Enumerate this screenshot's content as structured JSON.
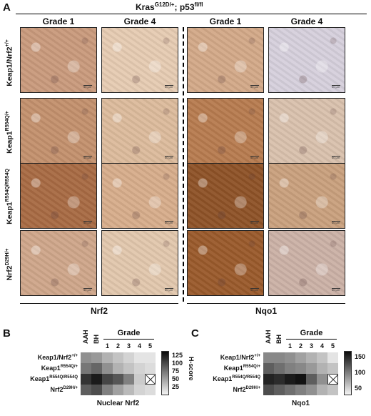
{
  "panel_a": {
    "letter": "A",
    "title_base": "Kras",
    "title_sup1": "G12D/+",
    "title_mid": "; p53",
    "title_sup2": "fl/fl",
    "column_headers": [
      "Grade 1",
      "Grade 4",
      "Grade 1",
      "Grade 4"
    ],
    "rows": [
      {
        "base": "Keap1/Nrf2",
        "sup": "+/+"
      },
      {
        "base": "Keap1",
        "sup": "R554Q/+"
      },
      {
        "base": "Keap1",
        "sup": "R554Q/R554Q"
      },
      {
        "base": "Nrf2",
        "sup": "D29H/+"
      }
    ],
    "scale_text": "50 μm",
    "footer_left": "Nrf2",
    "footer_right": "Nqo1",
    "tile_colors": [
      [
        "#c99a7c",
        "#e6cbb2",
        "#d3a988",
        "#d6d0dc"
      ],
      [
        "#c3906d",
        "#dcbb9c",
        "#b77b4f",
        "#d9c1ad"
      ],
      [
        "#a86a43",
        "#d7ad8b",
        "#8e5227",
        "#c9a07d"
      ],
      [
        "#cfa68a",
        "#e2c7ad",
        "#9a5a2b",
        "#cbb1a6"
      ]
    ]
  },
  "panel_b": {
    "letter": "B",
    "grade_label": "Grade",
    "column_headers": [
      "AAH",
      "BH",
      "1",
      "2",
      "3",
      "4",
      "5"
    ],
    "rows": [
      {
        "base": "Keap1/Nrf2",
        "sup": "+/+"
      },
      {
        "base": "Keap1",
        "sup": "R554Q/+"
      },
      {
        "base": "Keap1",
        "sup": "R554Q/R554Q"
      },
      {
        "base": "Nrf2",
        "sup": "D29H/+"
      }
    ],
    "values": [
      [
        60,
        55,
        40,
        30,
        20,
        10,
        10
      ],
      [
        75,
        85,
        60,
        40,
        30,
        20,
        15
      ],
      [
        115,
        130,
        105,
        95,
        70,
        25,
        null
      ],
      [
        90,
        100,
        70,
        50,
        35,
        20,
        15
      ]
    ],
    "colorbar_min": 0,
    "colorbar_max": 140,
    "colorbar_ticks": [
      "125",
      "100",
      "75",
      "50",
      "25"
    ],
    "colorbar_label": "H-score",
    "xlabel": "Nuclear Nrf2"
  },
  "panel_c": {
    "letter": "C",
    "grade_label": "Grade",
    "column_headers": [
      "AAH",
      "BH",
      "1",
      "2",
      "3",
      "4",
      "5"
    ],
    "rows": [
      {
        "base": "Keap1/Nrf2",
        "sup": "+/+"
      },
      {
        "base": "Keap1",
        "sup": "R554Q/+"
      },
      {
        "base": "Keap1",
        "sup": "R554Q/R554Q"
      },
      {
        "base": "Nrf2",
        "sup": "D29H/+"
      }
    ],
    "values": [
      [
        95,
        95,
        90,
        80,
        70,
        60,
        40
      ],
      [
        120,
        110,
        100,
        95,
        85,
        70,
        60
      ],
      [
        155,
        150,
        160,
        165,
        120,
        90,
        null
      ],
      [
        130,
        120,
        110,
        100,
        90,
        70,
        60
      ]
    ],
    "colorbar_min": 30,
    "colorbar_max": 170,
    "colorbar_ticks": [
      "150",
      "100",
      "50"
    ],
    "colorbar_label": "H-score",
    "xlabel": "Nqo1"
  }
}
